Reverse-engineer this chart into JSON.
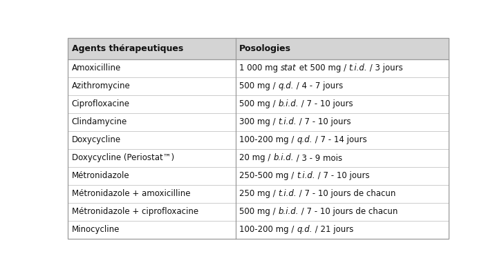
{
  "header": [
    "Agents thérapeutiques",
    "Posologies"
  ],
  "rows": [
    [
      "Amoxicilline",
      [
        "1 000 mg ",
        "stat",
        " et 500 mg / ",
        "t.i.d.",
        " / 3 jours"
      ]
    ],
    [
      "Azithromycine",
      [
        "500 mg / ",
        "q.d.",
        " / 4 - 7 jours"
      ]
    ],
    [
      "Ciprofloxacine",
      [
        "500 mg / ",
        "b.i.d.",
        " / 7 - 10 jours"
      ]
    ],
    [
      "Clindamycine",
      [
        "300 mg / ",
        "t.i.d.",
        " / 7 - 10 jours"
      ]
    ],
    [
      "Doxycycline",
      [
        "100-200 mg / ",
        "q.d.",
        " / 7 - 14 jours"
      ]
    ],
    [
      "Doxycycline (Periostat™)",
      [
        "20 mg / ",
        "b.i.d.",
        " / 3 - 9 mois"
      ]
    ],
    [
      "Métronidazole",
      [
        "250-500 mg / ",
        "t.i.d.",
        " / 7 - 10 jours"
      ]
    ],
    [
      "Métronidazole + amoxicilline",
      [
        "250 mg / ",
        "t.i.d.",
        " / 7 - 10 jours de chacun"
      ]
    ],
    [
      "Métronidazole + ciprofloxacine",
      [
        "500 mg / ",
        "b.i.d.",
        " / 7 - 10 jours de chacun"
      ]
    ],
    [
      "Minocycline",
      [
        "100-200 mg / ",
        "q.d.",
        " / 21 jours"
      ]
    ]
  ],
  "col_split": 0.44,
  "header_bg": "#d4d4d4",
  "border_color": "#999999",
  "line_color": "#cccccc",
  "header_font_size": 9.0,
  "row_font_size": 8.5,
  "fig_width": 7.29,
  "fig_height": 3.97,
  "dpi": 100
}
